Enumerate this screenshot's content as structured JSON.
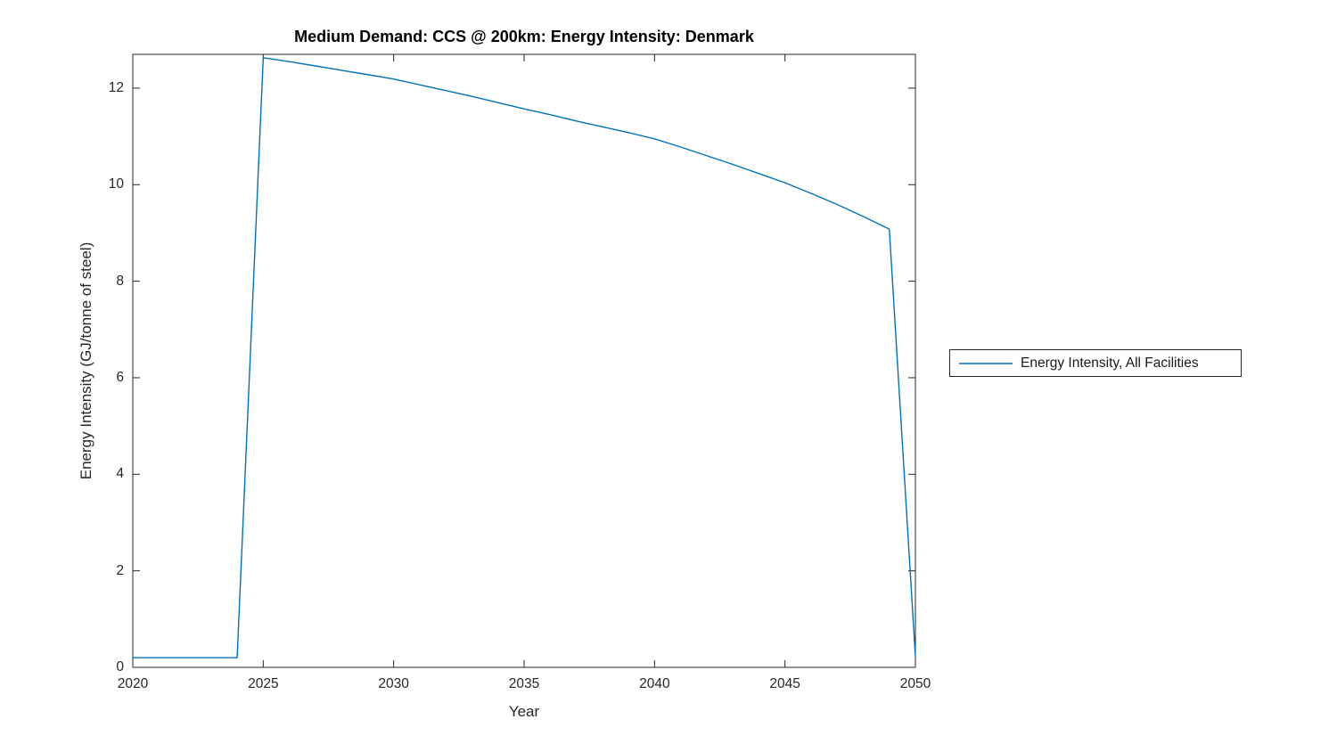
{
  "figure": {
    "background": "#ffffff"
  },
  "chart_data": {
    "type": "line",
    "title": "Medium Demand: CCS @ 200km: Energy Intensity: Denmark",
    "xlabel": "Year",
    "ylabel": "Energy Intensity (GJ/tonne of steel)",
    "xlim": [
      2020,
      2050
    ],
    "ylim": [
      0,
      12.7
    ],
    "x_ticks": [
      2020,
      2025,
      2030,
      2035,
      2040,
      2045,
      2050
    ],
    "y_ticks": [
      0,
      2,
      4,
      6,
      8,
      10,
      12
    ],
    "grid": false,
    "box": true,
    "axis_color": "#262626",
    "line_color": "#0072BD",
    "legend": {
      "position": "outside-right",
      "border_color": "#262626",
      "entries": [
        {
          "label": "Energy Intensity, All Facilities",
          "color": "#0072BD"
        }
      ]
    },
    "series": [
      {
        "name": "Energy Intensity, All Facilities",
        "color": "#0072BD",
        "x": [
          2020,
          2021,
          2022,
          2023,
          2024,
          2025,
          2026,
          2027,
          2028,
          2029,
          2030,
          2031,
          2032,
          2033,
          2034,
          2035,
          2036,
          2037,
          2038,
          2039,
          2040,
          2041,
          2042,
          2043,
          2044,
          2045,
          2046,
          2047,
          2048,
          2049,
          2050
        ],
        "y": [
          0.2,
          0.2,
          0.2,
          0.2,
          0.2,
          12.63,
          12.55,
          12.46,
          12.37,
          12.28,
          12.19,
          12.07,
          11.95,
          11.83,
          11.7,
          11.57,
          11.45,
          11.32,
          11.2,
          11.08,
          10.95,
          10.78,
          10.6,
          10.42,
          10.23,
          10.04,
          9.82,
          9.59,
          9.34,
          9.08,
          0.22
        ]
      }
    ]
  }
}
